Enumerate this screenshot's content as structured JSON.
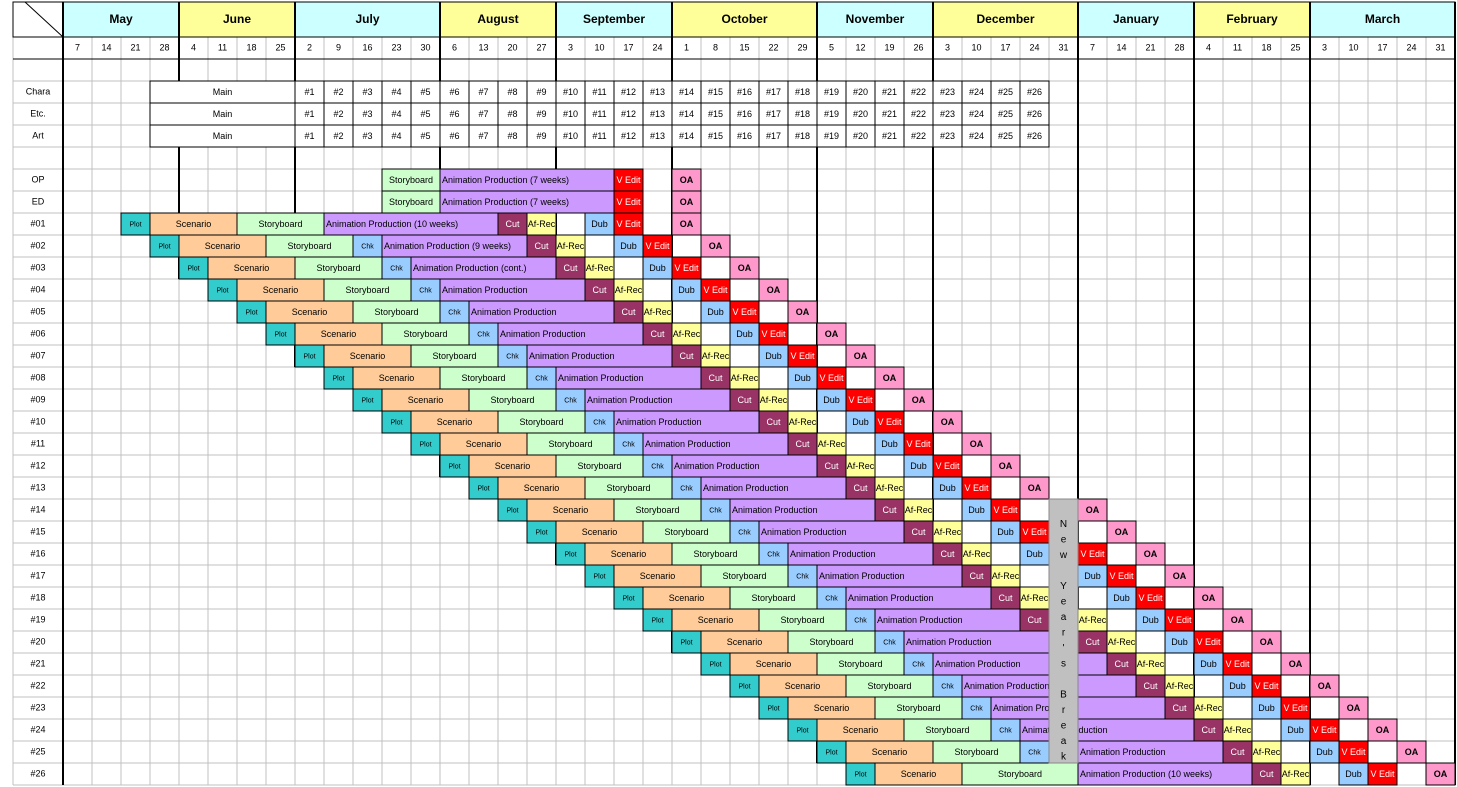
{
  "header": {
    "months": [
      "May",
      "June",
      "July",
      "August",
      "September",
      "October",
      "November",
      "December",
      "January",
      "February",
      "March"
    ],
    "days": [
      7,
      14,
      21,
      28,
      4,
      11,
      18,
      25,
      2,
      9,
      16,
      23,
      30,
      6,
      13,
      20,
      27,
      3,
      10,
      17,
      24,
      1,
      8,
      15,
      22,
      29,
      5,
      12,
      19,
      26,
      3,
      10,
      17,
      24,
      31,
      7,
      14,
      21,
      28,
      4,
      11,
      18,
      25,
      3,
      10,
      17,
      24,
      31
    ]
  },
  "rows": [
    {
      "label": "Chara",
      "tasks": [
        "Main",
        "#1",
        "#2",
        "#3",
        "#4",
        "#5",
        "#6",
        "#7",
        "#8",
        "#9",
        "#10",
        "#11",
        "#12",
        "#13",
        "#14",
        "#15",
        "#16",
        "#17",
        "#18",
        "#19",
        "#20",
        "#21",
        "#22",
        "#23",
        "#24",
        "#25",
        "#26"
      ]
    },
    {
      "label": "Etc.",
      "tasks": [
        "Main",
        "#1",
        "#2",
        "#3",
        "#4",
        "#5",
        "#6",
        "#7",
        "#8",
        "#9",
        "#10",
        "#11",
        "#12",
        "#13",
        "#14",
        "#15",
        "#16",
        "#17",
        "#18",
        "#19",
        "#20",
        "#21",
        "#22",
        "#23",
        "#24",
        "#25",
        "#26"
      ]
    },
    {
      "label": "Art",
      "tasks": [
        "Main",
        "#1",
        "#2",
        "#3",
        "#4",
        "#5",
        "#6",
        "#7",
        "#8",
        "#9",
        "#10",
        "#11",
        "#12",
        "#13",
        "#14",
        "#15",
        "#16",
        "#17",
        "#18",
        "#19",
        "#20",
        "#21",
        "#22",
        "#23",
        "#24",
        "#25",
        "#26"
      ]
    },
    {
      "label": "OP",
      "tasks": [
        "Storyboard",
        "Animation Production (7 weeks)",
        "V Edit",
        "OA"
      ]
    },
    {
      "label": "ED",
      "tasks": [
        "Storyboard",
        "Animation Production (7 weeks)",
        "V Edit",
        "OA"
      ]
    },
    {
      "label": "#01",
      "tasks": [
        "Plot",
        "Scenario",
        "Storyboard",
        "Animation Production (10 weeks)",
        "Cut",
        "Af-Rec",
        "Dub",
        "V Edit",
        "OA"
      ]
    },
    {
      "label": "#02",
      "tasks": [
        "Plot",
        "Scenario",
        "Storyboard",
        "Chk",
        "Animation Production (9 weeks)",
        "Cut",
        "Af-Rec",
        "Dub",
        "V Edit",
        "OA"
      ]
    },
    {
      "label": "#03",
      "tasks": [
        "Plot",
        "Scenario",
        "Storyboard",
        "Chk",
        "Animation Production (cont.)",
        "Cut",
        "Af-Rec",
        "Dub",
        "V Edit",
        "OA"
      ]
    },
    {
      "label": "#04",
      "tasks": [
        "Plot",
        "Scenario",
        "Storyboard",
        "Chk",
        "Animation Production",
        "Cut",
        "Af-Rec",
        "Dub",
        "V Edit",
        "OA"
      ]
    },
    {
      "label": "#05",
      "tasks": [
        "Plot",
        "Scenario",
        "Storyboard",
        "Chk",
        "Animation Production",
        "Cut",
        "Af-Rec",
        "Dub",
        "V Edit",
        "OA"
      ]
    },
    {
      "label": "#06",
      "tasks": [
        "Plot",
        "Scenario",
        "Storyboard",
        "Chk",
        "Animation Production",
        "Cut",
        "Af-Rec",
        "Dub",
        "V Edit",
        "OA"
      ]
    },
    {
      "label": "#07",
      "tasks": [
        "Plot",
        "Scenario",
        "Storyboard",
        "Chk",
        "Animation Production",
        "Cut",
        "Af-Rec",
        "Dub",
        "V Edit",
        "OA"
      ]
    },
    {
      "label": "#08",
      "tasks": [
        "Plot",
        "Scenario",
        "Storyboard",
        "Chk",
        "Animation Production",
        "Cut",
        "Af-Rec",
        "Dub",
        "V Edit",
        "OA"
      ]
    },
    {
      "label": "#09",
      "tasks": [
        "Plot",
        "Scenario",
        "Storyboard",
        "Chk",
        "Animation Production",
        "Cut",
        "Af-Rec",
        "Dub",
        "V Edit",
        "OA"
      ]
    },
    {
      "label": "#10",
      "tasks": [
        "Plot",
        "Scenario",
        "Storyboard",
        "Chk",
        "Animation Production",
        "Cut",
        "Af-Rec",
        "Dub",
        "V Edit",
        "OA"
      ]
    },
    {
      "label": "#11",
      "tasks": [
        "Plot",
        "Scenario",
        "Storyboard",
        "Chk",
        "Animation Production",
        "Cut",
        "Af-Rec",
        "Dub",
        "V Edit",
        "OA"
      ]
    },
    {
      "label": "#12",
      "tasks": [
        "Plot",
        "Scenario",
        "Storyboard",
        "Chk",
        "Animation Production",
        "Cut",
        "Af-Rec",
        "Dub",
        "V Edit",
        "OA"
      ]
    },
    {
      "label": "#13",
      "tasks": [
        "Plot",
        "Scenario",
        "Storyboard",
        "Chk",
        "Animation Production",
        "Cut",
        "Af-Rec",
        "Dub",
        "V Edit",
        "OA"
      ]
    },
    {
      "label": "#14",
      "tasks": [
        "Plot",
        "Scenario",
        "Storyboard",
        "Chk",
        "Animation Production",
        "Cut",
        "Af-Rec",
        "Dub",
        "V Edit",
        "OA"
      ]
    },
    {
      "label": "#15",
      "tasks": [
        "Plot",
        "Scenario",
        "Storyboard",
        "Chk",
        "Animation Production",
        "Cut",
        "Af-Rec",
        "Dub",
        "V Edit",
        "OA"
      ]
    },
    {
      "label": "#16",
      "tasks": [
        "Plot",
        "Scenario",
        "Storyboard",
        "Chk",
        "Animation Production",
        "Cut",
        "Af-Rec",
        "Dub",
        "V Edit",
        "OA"
      ]
    },
    {
      "label": "#17",
      "tasks": [
        "Plot",
        "Scenario",
        "Storyboard",
        "Chk",
        "Animation Production",
        "Cut",
        "Af-Rec",
        "Dub",
        "V Edit",
        "OA"
      ]
    },
    {
      "label": "#18",
      "tasks": [
        "Plot",
        "Scenario",
        "Storyboard",
        "Chk",
        "Animation Production",
        "Cut",
        "Af-Rec",
        "Dub",
        "V Edit",
        "OA"
      ]
    },
    {
      "label": "#19",
      "tasks": [
        "Plot",
        "Scenario",
        "Storyboard",
        "Chk",
        "Animation Production",
        "Cut",
        "Af-Rec",
        "Dub",
        "V Edit",
        "OA"
      ]
    },
    {
      "label": "#20",
      "tasks": [
        "Plot",
        "Scenario",
        "Storyboard",
        "Chk",
        "Animation Production",
        "Cut",
        "Af-Rec",
        "Dub",
        "V Edit",
        "OA"
      ]
    },
    {
      "label": "#21",
      "tasks": [
        "Plot",
        "Scenario",
        "Storyboard",
        "Chk",
        "Animation Production",
        "Cut",
        "Af-Rec",
        "Dub",
        "V Edit",
        "OA"
      ]
    },
    {
      "label": "#22",
      "tasks": [
        "Plot",
        "Scenario",
        "Storyboard",
        "Chk",
        "Animation Production",
        "Cut",
        "Af-Rec",
        "Dub",
        "V Edit",
        "OA"
      ]
    },
    {
      "label": "#23",
      "tasks": [
        "Plot",
        "Scenario",
        "Storyboard",
        "Chk",
        "Animation Production",
        "Cut",
        "Af-Rec",
        "Dub",
        "V Edit",
        "OA"
      ]
    },
    {
      "label": "#24",
      "tasks": [
        "Plot",
        "Scenario",
        "Storyboard",
        "Chk",
        "Animation Production",
        "Cut",
        "Af-Rec",
        "Dub",
        "V Edit",
        "OA"
      ]
    },
    {
      "label": "#25",
      "tasks": [
        "Plot",
        "Scenario",
        "Storyboard",
        "Chk",
        "Animation Production",
        "Cut",
        "Af-Rec",
        "Dub",
        "V Edit",
        "OA"
      ]
    },
    {
      "label": "#26",
      "tasks": [
        "Plot",
        "Scenario",
        "Storyboard",
        "Animation Production (10 weeks)",
        "Cut",
        "Af-Rec",
        "Dub",
        "V Edit",
        "OA"
      ]
    }
  ],
  "break_label": "New Year's Break"
}
